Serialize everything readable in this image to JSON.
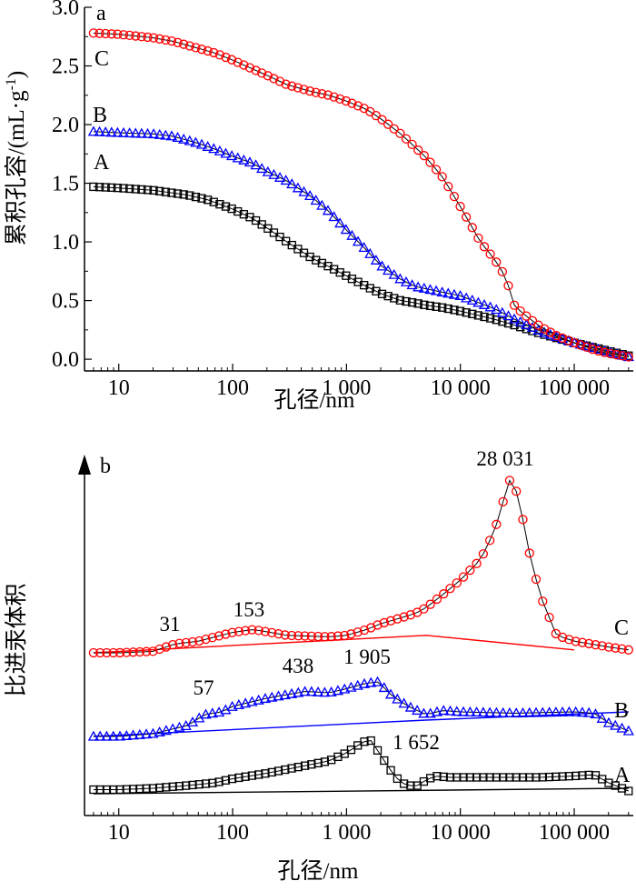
{
  "colors": {
    "A": "#000000",
    "B": "#0000ff",
    "C": "#ff0000"
  },
  "chart_data": [
    {
      "type": "line",
      "panel": "a",
      "xscale": "log",
      "xlim": [
        5,
        330000
      ],
      "ylim": [
        -0.1,
        3.0
      ],
      "xticks": [
        10,
        100,
        1000,
        10000,
        100000
      ],
      "xtick_labels": [
        "10",
        "100",
        "1 000",
        "10 000",
        "100 000"
      ],
      "yticks": [
        0.0,
        0.5,
        1.0,
        1.5,
        2.0,
        2.5,
        3.0
      ],
      "ytick_labels": [
        "0.0",
        "0.5",
        "1.0",
        "1.5",
        "2.0",
        "2.5",
        "3.0"
      ],
      "xlabel": "孔径/nm",
      "ylabel": "累积孔容/(mL·g-1)",
      "series": [
        {
          "name": "A",
          "marker": "square",
          "x": [
            6,
            10,
            20,
            40,
            60,
            100,
            150,
            200,
            300,
            500,
            700,
            1000,
            1500,
            2000,
            3000,
            4000,
            5000,
            7000,
            10000,
            20000,
            30000,
            50000,
            100000,
            200000,
            300000
          ],
          "y": [
            1.47,
            1.46,
            1.44,
            1.4,
            1.36,
            1.28,
            1.2,
            1.12,
            1.0,
            0.86,
            0.79,
            0.71,
            0.62,
            0.56,
            0.5,
            0.48,
            0.46,
            0.44,
            0.41,
            0.34,
            0.29,
            0.22,
            0.14,
            0.07,
            0.03
          ]
        },
        {
          "name": "B",
          "marker": "triangle",
          "x": [
            6,
            10,
            20,
            30,
            50,
            70,
            100,
            150,
            200,
            300,
            500,
            700,
            1000,
            1500,
            2000,
            3000,
            4000,
            5000,
            7000,
            10000,
            20000,
            30000,
            50000,
            100000,
            200000,
            300000
          ],
          "y": [
            1.94,
            1.93,
            1.92,
            1.9,
            1.84,
            1.79,
            1.73,
            1.67,
            1.6,
            1.52,
            1.38,
            1.26,
            1.1,
            0.93,
            0.8,
            0.68,
            0.62,
            0.6,
            0.57,
            0.54,
            0.43,
            0.34,
            0.24,
            0.14,
            0.06,
            0.02
          ]
        },
        {
          "name": "C",
          "marker": "circle",
          "x": [
            6,
            10,
            20,
            30,
            50,
            70,
            100,
            200,
            300,
            500,
            700,
            1000,
            1500,
            2000,
            3000,
            5000,
            7000,
            10000,
            15000,
            20000,
            25000,
            30000,
            40000,
            50000,
            70000,
            100000,
            150000,
            200000,
            300000
          ],
          "y": [
            2.78,
            2.77,
            2.74,
            2.71,
            2.65,
            2.61,
            2.55,
            2.42,
            2.34,
            2.28,
            2.25,
            2.2,
            2.13,
            2.05,
            1.92,
            1.72,
            1.55,
            1.3,
            1.0,
            0.85,
            0.7,
            0.45,
            0.35,
            0.28,
            0.2,
            0.14,
            0.08,
            0.05,
            0.02
          ]
        }
      ]
    },
    {
      "type": "line",
      "panel": "b",
      "xscale": "log",
      "xlim": [
        5,
        330000
      ],
      "yscale": "relative (no tick labels)",
      "xticks": [
        10,
        100,
        1000,
        10000,
        100000
      ],
      "xtick_labels": [
        "10",
        "100",
        "1 000",
        "10 000",
        "100 000"
      ],
      "xlabel": "孔径/nm",
      "ylabel": "比进汞体积",
      "series": [
        {
          "name": "A",
          "marker": "square",
          "x": [
            6,
            10,
            20,
            40,
            70,
            100,
            200,
            400,
            700,
            1000,
            1400,
            1652,
            2000,
            2500,
            3000,
            4000,
            5000,
            6000,
            8000,
            10000,
            20000,
            50000,
            100000,
            150000,
            200000,
            300000
          ],
          "y": [
            0.55,
            0.55,
            0.6,
            0.7,
            0.8,
            0.95,
            1.15,
            1.4,
            1.6,
            1.9,
            2.3,
            2.35,
            1.8,
            1.2,
            0.8,
            0.65,
            0.9,
            1.05,
            1.0,
            1.0,
            1.0,
            1.0,
            1.05,
            1.1,
            0.8,
            0.5
          ]
        },
        {
          "name": "B",
          "marker": "triangle",
          "x": [
            6,
            10,
            20,
            40,
            57,
            80,
            100,
            200,
            438,
            700,
            1000,
            1500,
            1905,
            2500,
            3500,
            5000,
            7000,
            10000,
            30000,
            100000,
            150000,
            200000,
            300000
          ],
          "y": [
            0.0,
            0.0,
            0.1,
            0.4,
            0.8,
            0.9,
            1.1,
            1.4,
            1.65,
            1.6,
            1.75,
            1.95,
            2.0,
            1.5,
            1.1,
            0.8,
            0.95,
            0.9,
            0.85,
            0.9,
            0.85,
            0.5,
            0.2
          ]
        },
        {
          "name": "C",
          "marker": "circle",
          "x": [
            6,
            10,
            20,
            31,
            50,
            100,
            153,
            300,
            700,
            1000,
            1500,
            2000,
            3000,
            4000,
            5000,
            7000,
            10000,
            15000,
            20000,
            25000,
            28031,
            33000,
            40000,
            50000,
            70000,
            100000,
            200000,
            300000
          ],
          "y": [
            0.0,
            0.0,
            0.05,
            0.3,
            0.4,
            0.7,
            0.8,
            0.6,
            0.55,
            0.6,
            0.8,
            1.0,
            1.2,
            1.35,
            1.55,
            2.0,
            2.5,
            3.2,
            4.2,
            5.5,
            6.1,
            5.2,
            3.5,
            2.0,
            0.6,
            0.4,
            0.2,
            0.1
          ]
        }
      ],
      "baselines": [
        {
          "name": "A",
          "x": [
            6,
            300000
          ],
          "y": [
            0.4,
            0.6
          ]
        },
        {
          "name": "B",
          "x": [
            6,
            5000,
            300000
          ],
          "y": [
            0.0,
            0.6,
            0.9
          ]
        },
        {
          "name": "C",
          "x": [
            6,
            5000,
            100000
          ],
          "y": [
            0.0,
            0.6,
            0.1
          ]
        }
      ],
      "annotations": [
        "28 031",
        "31",
        "153",
        "57",
        "438",
        "1 905",
        "1 652"
      ]
    }
  ],
  "labels": {
    "panel_a": "a",
    "panel_b": "b",
    "curve_A": "A",
    "curve_B": "B",
    "curve_C": "C",
    "peak_28031": "28 031",
    "peak_31": "31",
    "peak_153": "153",
    "peak_57": "57",
    "peak_438": "438",
    "peak_1905": "1 905",
    "peak_1652": "1 652"
  }
}
